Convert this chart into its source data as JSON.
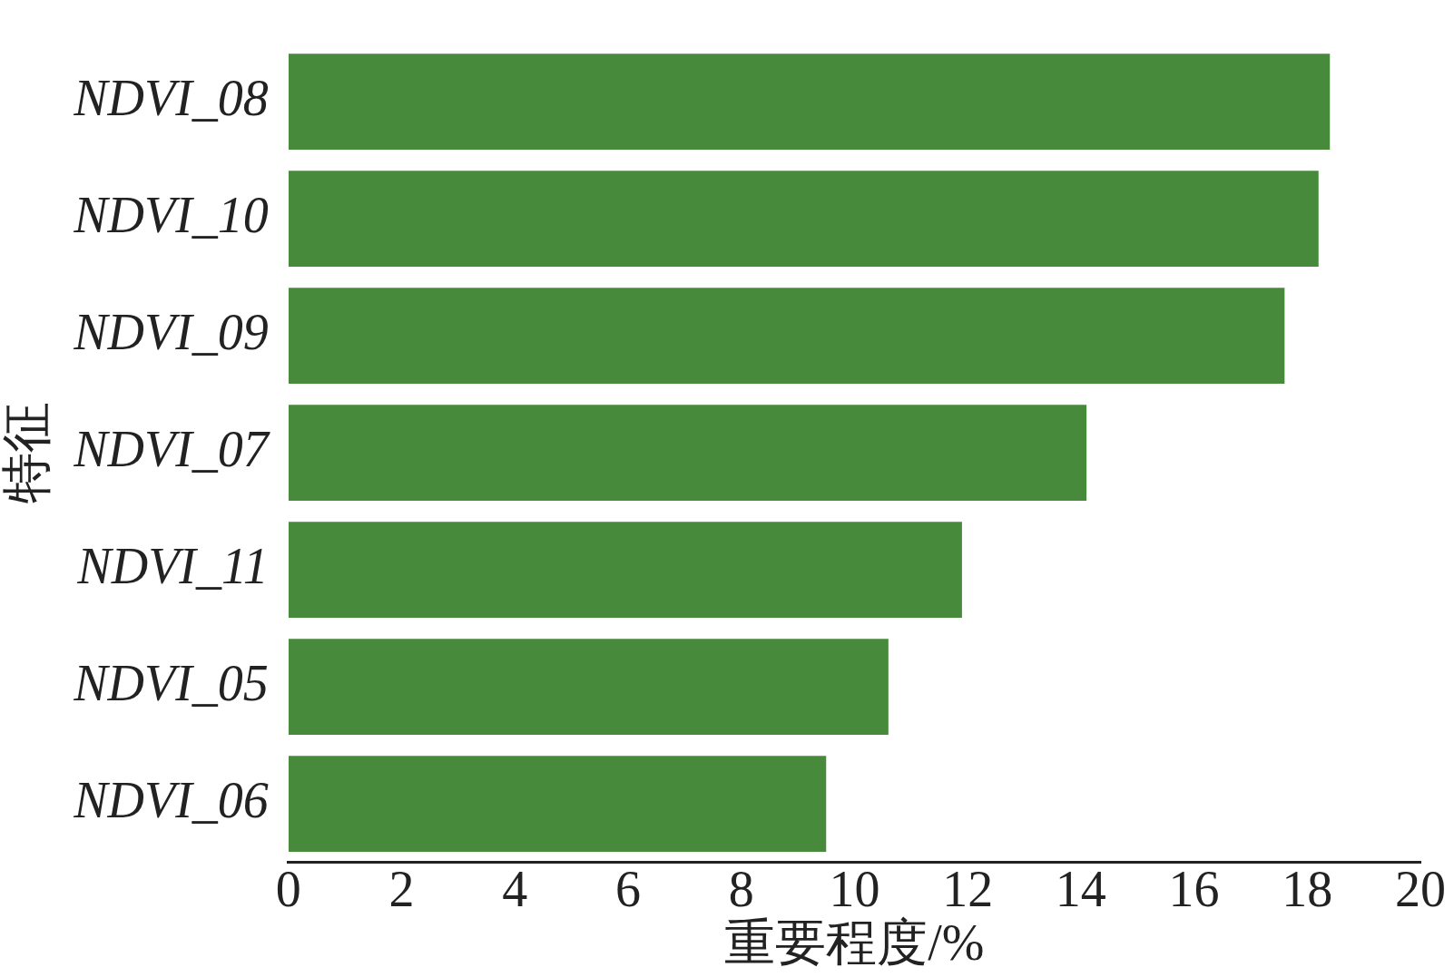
{
  "chart_data": {
    "type": "bar",
    "orientation": "horizontal",
    "xlabel": "重要程度/%",
    "ylabel": "特征",
    "categories": [
      "NDVI_08",
      "NDVI_10",
      "NDVI_09",
      "NDVI_07",
      "NDVI_11",
      "NDVI_05",
      "NDVI_06"
    ],
    "values": [
      18.4,
      18.2,
      17.6,
      14.1,
      11.9,
      10.6,
      9.5
    ],
    "color": "#478a3b",
    "xlim": [
      0,
      20
    ],
    "xticks": [
      0,
      2,
      4,
      6,
      8,
      10,
      12,
      14,
      16,
      18,
      20
    ],
    "grid": false,
    "legend": false
  }
}
